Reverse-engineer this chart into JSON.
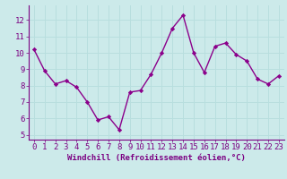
{
  "x": [
    0,
    1,
    2,
    3,
    4,
    5,
    6,
    7,
    8,
    9,
    10,
    11,
    12,
    13,
    14,
    15,
    16,
    17,
    18,
    19,
    20,
    21,
    22,
    23
  ],
  "y": [
    10.2,
    8.9,
    8.1,
    8.3,
    7.9,
    7.0,
    5.9,
    6.1,
    5.3,
    7.6,
    7.7,
    8.7,
    10.0,
    11.5,
    12.3,
    10.0,
    8.8,
    10.4,
    10.6,
    9.9,
    9.5,
    8.4,
    8.1,
    8.6
  ],
  "line_color": "#8B008B",
  "marker": "D",
  "marker_size": 2.2,
  "line_width": 1.0,
  "xlabel": "Windchill (Refroidissement éolien,°C)",
  "xlabel_fontsize": 6.5,
  "xlabel_color": "#7B0082",
  "ylabel_ticks": [
    5,
    6,
    7,
    8,
    9,
    10,
    11,
    12
  ],
  "xtick_labels": [
    "0",
    "1",
    "2",
    "3",
    "4",
    "5",
    "6",
    "7",
    "8",
    "9",
    "10",
    "11",
    "12",
    "13",
    "14",
    "15",
    "16",
    "17",
    "18",
    "19",
    "20",
    "21",
    "22",
    "23"
  ],
  "background_color": "#cceaea",
  "grid_color": "#aadddd",
  "ylim": [
    4.7,
    12.9
  ],
  "xlim": [
    -0.5,
    23.5
  ],
  "tick_label_color": "#7B0082",
  "tick_label_fontsize": 6.5,
  "spine_color": "#7B0082"
}
